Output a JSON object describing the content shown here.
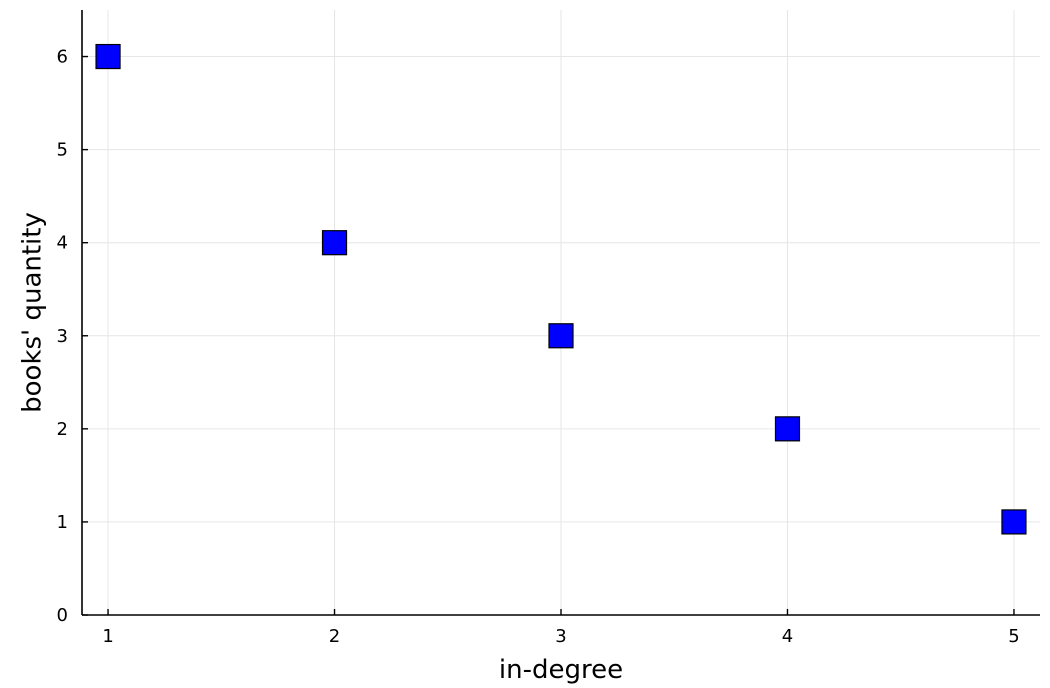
{
  "chart_data": {
    "type": "scatter",
    "title": "",
    "xlabel": "in-degree",
    "ylabel": "books' quantity",
    "x": [
      1,
      2,
      3,
      4,
      5
    ],
    "y": [
      6,
      4,
      3,
      2,
      1
    ],
    "xlim": [
      0.885,
      5.115
    ],
    "ylim": [
      0,
      6.5
    ],
    "xticks": [
      1,
      2,
      3,
      4,
      5
    ],
    "yticks": [
      0,
      1,
      2,
      3,
      4,
      5,
      6
    ],
    "grid": true,
    "legend": "none",
    "marker": "square",
    "marker_color": "#0000ff",
    "marker_edge_color": "#000000"
  }
}
